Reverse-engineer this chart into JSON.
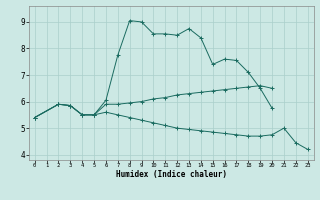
{
  "xlabel": "Humidex (Indice chaleur)",
  "bg_color": "#cce8e4",
  "grid_color": "#aacfcb",
  "line_color": "#1a6b60",
  "xlim": [
    -0.5,
    23.5
  ],
  "ylim": [
    3.8,
    9.6
  ],
  "xticks": [
    0,
    1,
    2,
    3,
    4,
    5,
    6,
    7,
    8,
    9,
    10,
    11,
    12,
    13,
    14,
    15,
    16,
    17,
    18,
    19,
    20,
    21,
    22,
    23
  ],
  "yticks": [
    4,
    5,
    6,
    7,
    8,
    9
  ],
  "line1_x": [
    0,
    2,
    3,
    4,
    5,
    6,
    7,
    8,
    9,
    10,
    11,
    12,
    13,
    14,
    15,
    16,
    17,
    18,
    19,
    20
  ],
  "line1_y": [
    5.4,
    5.9,
    5.85,
    5.5,
    5.5,
    6.05,
    7.75,
    9.05,
    9.0,
    8.55,
    8.55,
    8.5,
    8.75,
    8.4,
    7.4,
    7.6,
    7.55,
    7.1,
    6.5,
    5.75
  ],
  "line2_x": [
    0,
    2,
    3,
    4,
    5,
    6,
    7,
    8,
    9,
    10,
    11,
    12,
    13,
    14,
    15,
    16,
    17,
    18,
    19,
    20
  ],
  "line2_y": [
    5.4,
    5.9,
    5.85,
    5.5,
    5.5,
    5.9,
    5.9,
    5.95,
    6.0,
    6.1,
    6.15,
    6.25,
    6.3,
    6.35,
    6.4,
    6.45,
    6.5,
    6.55,
    6.6,
    6.5
  ],
  "line3_x": [
    0,
    2,
    3,
    4,
    5,
    6,
    7,
    8,
    9,
    10,
    11,
    12,
    13,
    14,
    15,
    16,
    17,
    18,
    19,
    20,
    21,
    22,
    23
  ],
  "line3_y": [
    5.4,
    5.9,
    5.85,
    5.5,
    5.5,
    5.6,
    5.5,
    5.4,
    5.3,
    5.2,
    5.1,
    5.0,
    4.95,
    4.9,
    4.85,
    4.8,
    4.75,
    4.7,
    4.7,
    4.75,
    5.0,
    4.45,
    4.2
  ]
}
